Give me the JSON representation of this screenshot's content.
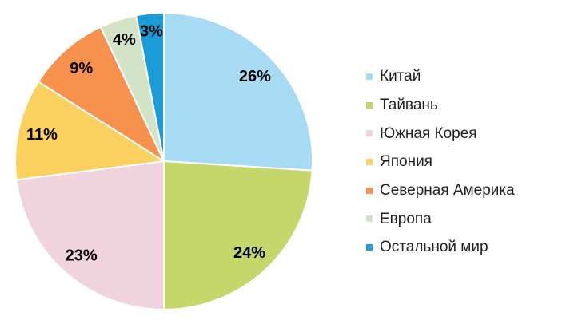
{
  "chart_data": {
    "type": "pie",
    "title": "",
    "categories": [
      "Китай",
      "Тайвань",
      "Южная Корея",
      "Япония",
      "Северная Америка",
      "Европа",
      "Остальной мир"
    ],
    "values": [
      26,
      24,
      23,
      11,
      9,
      4,
      3
    ],
    "slice_labels": [
      "26%",
      "24%",
      "23%",
      "11%",
      "9%",
      "4%",
      "3%"
    ],
    "colors": [
      "#A6DBF3",
      "#C5D76A",
      "#F0D3DD",
      "#FAD15F",
      "#F7924E",
      "#D3E3C5",
      "#1B9CD8"
    ],
    "unit": "%",
    "legend_position": "right",
    "start_angle_deg": 0,
    "direction": "clockwise",
    "grid": false,
    "label_color": "#000000",
    "legend_text_color": "#1f1f1f"
  }
}
